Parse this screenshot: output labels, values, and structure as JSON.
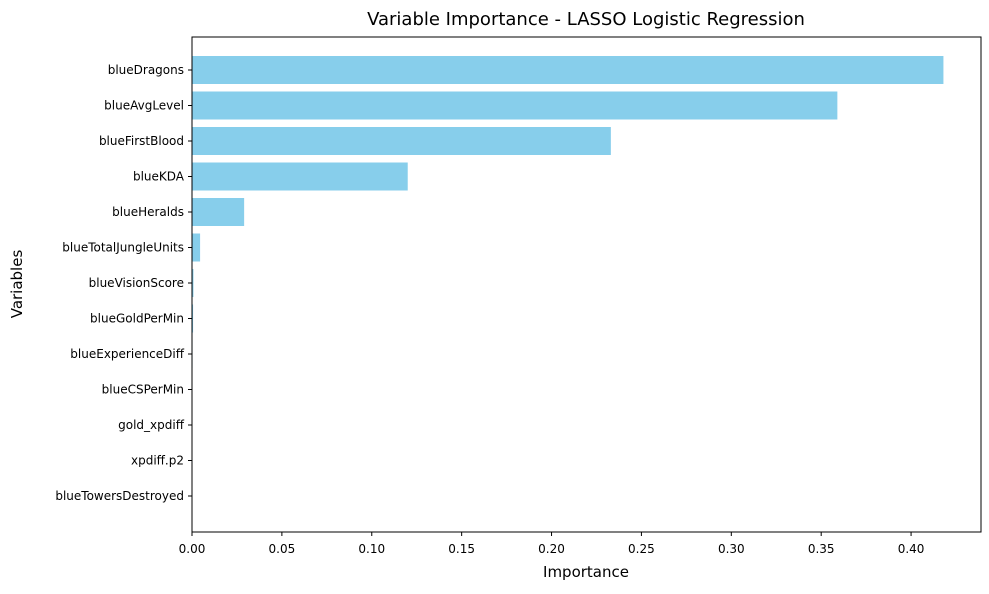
{
  "chart_data": {
    "type": "bar",
    "orientation": "horizontal",
    "title": "Variable Importance - LASSO Logistic Regression",
    "xlabel": "Importance",
    "ylabel": "Variables",
    "categories": [
      "blueDragons",
      "blueAvgLevel",
      "blueFirstBlood",
      "blueKDA",
      "blueHeralds",
      "blueTotalJungleUnits",
      "blueVisionScore",
      "blueGoldPerMin",
      "blueExperienceDiff",
      "blueCSPerMin",
      "gold_xpdiff",
      "xpdiff.p2",
      "blueTowersDestroyed"
    ],
    "values": [
      0.418,
      0.359,
      0.233,
      0.12,
      0.029,
      0.0045,
      0.0008,
      0.0006,
      0.0003,
      0.0001,
      0.0,
      0.0,
      0.0
    ],
    "xlim": [
      0,
      0.4389
    ],
    "xticks": [
      0.0,
      0.05,
      0.1,
      0.15,
      0.2,
      0.25,
      0.3,
      0.35,
      0.4
    ],
    "xtick_labels": [
      "0.00",
      "0.05",
      "0.10",
      "0.15",
      "0.20",
      "0.25",
      "0.30",
      "0.35",
      "0.40"
    ],
    "grid": false,
    "bar_color": "#87CEEB"
  }
}
